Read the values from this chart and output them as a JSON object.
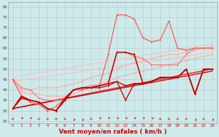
{
  "background_color": "#ceeaea",
  "grid_color": "#aaaaaa",
  "xlabel": "Vent moyen/en rafales ( km/h )",
  "xlabel_color": "#cc0000",
  "xlabel_fontsize": 6.5,
  "ylabel_ticks": [
    25,
    30,
    35,
    40,
    45,
    50,
    55,
    60,
    65,
    70,
    75,
    80
  ],
  "xticks": [
    0,
    1,
    2,
    3,
    4,
    5,
    6,
    7,
    8,
    9,
    10,
    11,
    12,
    13,
    14,
    15,
    16,
    17,
    18,
    19,
    20,
    21,
    22,
    23
  ],
  "xlim": [
    -0.5,
    23.5
  ],
  "ylim": [
    24,
    82
  ],
  "series": [
    {
      "color": "#ffaaaa",
      "lw": 0.8,
      "y": [
        45,
        40,
        40,
        41,
        41,
        41,
        42,
        43,
        44,
        46,
        47,
        48,
        50,
        52,
        53,
        54,
        55,
        56,
        57,
        57,
        58,
        59,
        60,
        61
      ]
    },
    {
      "color": "#ffaaaa",
      "lw": 0.8,
      "y": [
        44,
        39,
        38,
        38,
        37,
        37,
        37,
        38,
        40,
        42,
        43,
        44,
        46,
        47,
        48,
        49,
        50,
        51,
        52,
        53,
        54,
        55,
        56,
        57
      ]
    },
    {
      "color": "#ff7777",
      "lw": 0.9,
      "y": [
        45,
        41,
        40,
        36,
        35,
        35,
        36,
        40,
        41,
        42,
        42,
        43,
        58,
        58,
        56,
        55,
        52,
        52,
        52,
        52,
        57,
        60,
        60,
        60
      ]
    },
    {
      "color": "#ff5555",
      "lw": 0.9,
      "y": [
        45,
        37,
        34,
        33,
        30,
        32,
        36,
        40,
        40,
        41,
        42,
        57,
        76,
        76,
        74,
        65,
        63,
        64,
        73,
        60,
        59,
        60,
        60,
        60
      ]
    },
    {
      "color": "#cc0000",
      "lw": 1.2,
      "y": [
        31,
        37,
        35,
        34,
        31,
        30,
        35,
        40,
        41,
        41,
        42,
        43,
        58,
        58,
        57,
        43,
        44,
        46,
        46,
        46,
        50,
        38,
        50,
        50
      ]
    },
    {
      "color": "#cc0000",
      "lw": 1.0,
      "y": [
        31,
        36,
        35,
        34,
        31,
        30,
        35,
        40,
        41,
        41,
        42,
        43,
        44,
        35,
        43,
        43,
        44,
        46,
        46,
        46,
        50,
        38,
        50,
        50
      ]
    },
    {
      "color": "#cc0000",
      "lw": 1.0,
      "y": [
        31,
        36,
        35,
        34,
        31,
        30,
        36,
        40,
        41,
        41,
        41,
        42,
        44,
        42,
        43,
        43,
        44,
        46,
        46,
        46,
        50,
        38,
        50,
        50
      ]
    }
  ],
  "trend_lines": [
    {
      "color": "#ffbbbb",
      "lw": 0.8,
      "x0": 0,
      "y0": 46,
      "x1": 23,
      "y1": 62
    },
    {
      "color": "#ffbbbb",
      "lw": 0.8,
      "x0": 0,
      "y0": 44,
      "x1": 23,
      "y1": 58
    },
    {
      "color": "#dd3333",
      "lw": 1.2,
      "x0": 0,
      "y0": 31,
      "x1": 23,
      "y1": 50
    },
    {
      "color": "#cc0000",
      "lw": 1.0,
      "x0": 0,
      "y0": 31,
      "x1": 23,
      "y1": 49
    }
  ],
  "arrow_directions": [
    0,
    1,
    1,
    0,
    0,
    0,
    0,
    2,
    2,
    0,
    1,
    1,
    1,
    1,
    1,
    1,
    1,
    0,
    0,
    0,
    0,
    2,
    0,
    2
  ]
}
